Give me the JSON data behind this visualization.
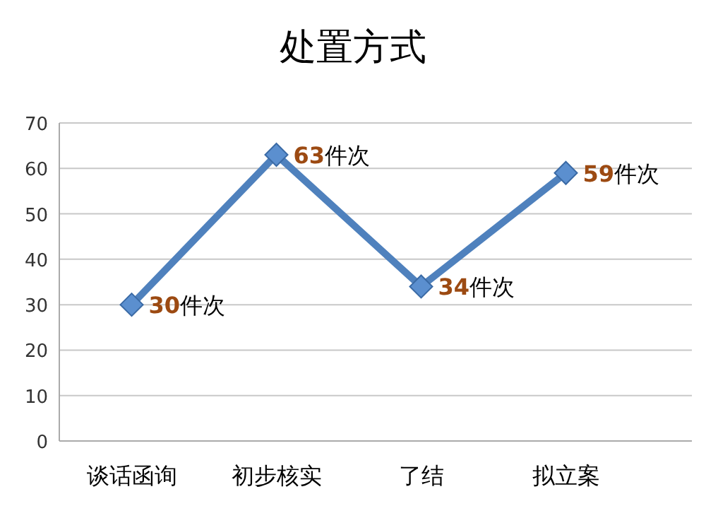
{
  "chart_data": {
    "type": "line",
    "title": "处置方式",
    "categories": [
      "谈话函询",
      "初步核实",
      "了结",
      "拟立案"
    ],
    "series": [
      {
        "color": "#4f81bd",
        "values": [
          30,
          63,
          34,
          59
        ],
        "value_labels": [
          "30件次",
          "63件次",
          "34件次",
          "59件次"
        ]
      }
    ],
    "ylim": [
      0,
      70
    ],
    "yticks": [
      0,
      10,
      20,
      30,
      40,
      50,
      60,
      70
    ],
    "grid": "y",
    "marker": "diamond",
    "line_style": "solid"
  }
}
